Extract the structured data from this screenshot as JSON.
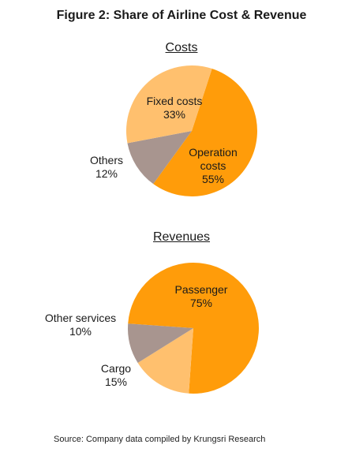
{
  "figure_title": "Figure 2:  Share of Airline Cost & Revenue",
  "source": "Source: Company data compiled by Krungsri Research",
  "colors": {
    "orange": "#ff9c0a",
    "light_orange": "#ffc06e",
    "taupe": "#a8958f"
  },
  "chart_data": [
    {
      "type": "pie",
      "title": "Costs",
      "slices": [
        {
          "label_lines": [
            "Fixed costs"
          ],
          "pct_text": "33%",
          "value": 33,
          "color": "#ffc06e"
        },
        {
          "label_lines": [
            "Operation",
            "costs"
          ],
          "pct_text": "55%",
          "value": 55,
          "color": "#ff9c0a"
        },
        {
          "label_lines": [
            "Others"
          ],
          "pct_text": "12%",
          "value": 12,
          "color": "#a8958f"
        }
      ]
    },
    {
      "type": "pie",
      "title": "Revenues",
      "slices": [
        {
          "label_lines": [
            "Passenger"
          ],
          "pct_text": "75%",
          "value": 75,
          "color": "#ff9c0a"
        },
        {
          "label_lines": [
            "Cargo"
          ],
          "pct_text": "15%",
          "value": 15,
          "color": "#ffc06e"
        },
        {
          "label_lines": [
            "Other services"
          ],
          "pct_text": "10%",
          "value": 10,
          "color": "#a8958f"
        }
      ]
    }
  ]
}
